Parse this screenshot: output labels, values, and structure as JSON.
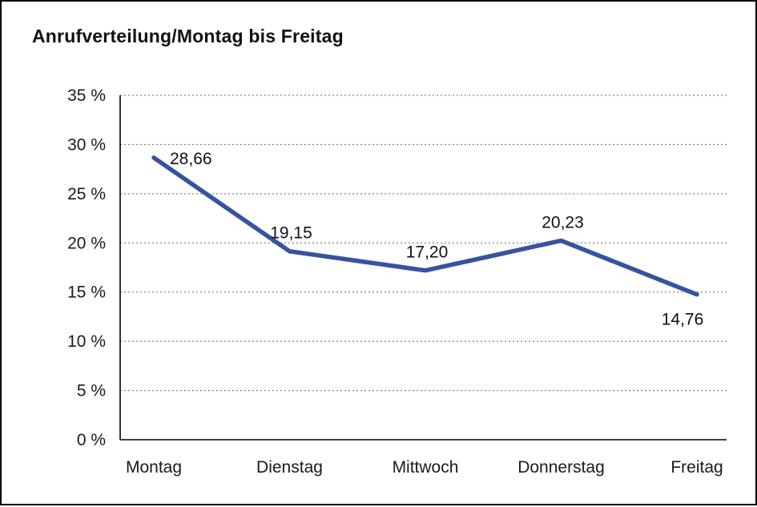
{
  "chart_data": {
    "type": "line",
    "title": "Anrufverteilung/Montag bis Freitag",
    "categories": [
      "Montag",
      "Dienstag",
      "Mittwoch",
      "Donnerstag",
      "Freitag"
    ],
    "values": [
      28.66,
      19.15,
      17.2,
      20.23,
      14.76
    ],
    "value_labels": [
      "28,66",
      "19,15",
      "17,20",
      "20,23",
      "14,76"
    ],
    "ylim": [
      0,
      35
    ],
    "ytick_step": 5,
    "ytick_labels": [
      "0 %",
      "5 %",
      "10 %",
      "15 %",
      "20 %",
      "25 %",
      "30 %",
      "35 %"
    ],
    "grid": "dotted-horizontal",
    "legend": "none",
    "line_color": "#36549E",
    "axis_color": "#000000",
    "label_positions": [
      "right",
      "above",
      "above",
      "above",
      "below"
    ]
  }
}
